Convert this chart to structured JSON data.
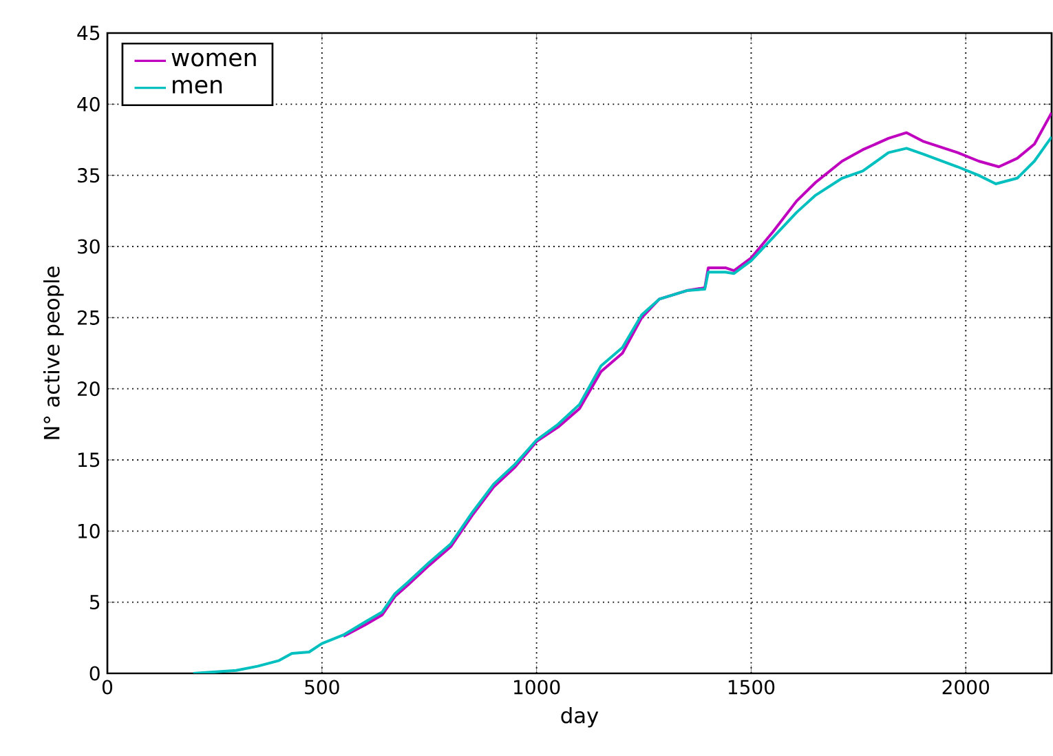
{
  "chart_data": {
    "type": "line",
    "xlabel": "day",
    "ylabel": "N° active people",
    "xlim": [
      0,
      2200
    ],
    "ylim": [
      0,
      45
    ],
    "xticks": [
      0,
      500,
      1000,
      1500,
      2000
    ],
    "yticks": [
      0,
      5,
      10,
      15,
      20,
      25,
      30,
      35,
      40,
      45
    ],
    "grid": true,
    "legend": "top left",
    "marker": "none",
    "line_style": "solid",
    "series": [
      {
        "name": "women",
        "color": "#bf00bf",
        "x": [
          550,
          600,
          640,
          670,
          700,
          750,
          800,
          850,
          900,
          950,
          1000,
          1050,
          1100,
          1150,
          1200,
          1245,
          1286,
          1350,
          1392,
          1400,
          1440,
          1460,
          1500,
          1550,
          1606,
          1650,
          1712,
          1760,
          1820,
          1862,
          1900,
          1981,
          2030,
          2077,
          2120,
          2160,
          2200
        ],
        "values": [
          2.6,
          3.4,
          4.1,
          5.4,
          6.2,
          7.6,
          8.9,
          11.1,
          13.1,
          14.5,
          16.3,
          17.3,
          18.6,
          21.2,
          22.5,
          25.0,
          26.3,
          26.9,
          27.1,
          28.5,
          28.5,
          28.3,
          29.2,
          31.0,
          33.2,
          34.5,
          36.0,
          36.8,
          37.6,
          38.0,
          37.4,
          36.6,
          36.0,
          35.6,
          36.2,
          37.2,
          39.4
        ]
      },
      {
        "name": "men",
        "color": "#00bfbf",
        "x": [
          200,
          300,
          350,
          400,
          430,
          470,
          500,
          550,
          600,
          640,
          670,
          700,
          750,
          800,
          850,
          900,
          950,
          1000,
          1050,
          1100,
          1150,
          1200,
          1245,
          1286,
          1350,
          1392,
          1400,
          1440,
          1460,
          1500,
          1550,
          1606,
          1650,
          1712,
          1760,
          1820,
          1862,
          1900,
          1981,
          2030,
          2070,
          2120,
          2160,
          2200
        ],
        "values": [
          0,
          0.2,
          0.5,
          0.9,
          1.4,
          1.5,
          2.1,
          2.7,
          3.6,
          4.3,
          5.6,
          6.4,
          7.8,
          9.1,
          11.3,
          13.3,
          14.7,
          16.4,
          17.5,
          18.9,
          21.6,
          22.9,
          25.2,
          26.3,
          26.9,
          27.0,
          28.2,
          28.2,
          28.1,
          29.0,
          30.6,
          32.4,
          33.6,
          34.8,
          35.3,
          36.6,
          36.9,
          36.5,
          35.6,
          35.0,
          34.4,
          34.8,
          36.0,
          37.7
        ]
      }
    ]
  }
}
